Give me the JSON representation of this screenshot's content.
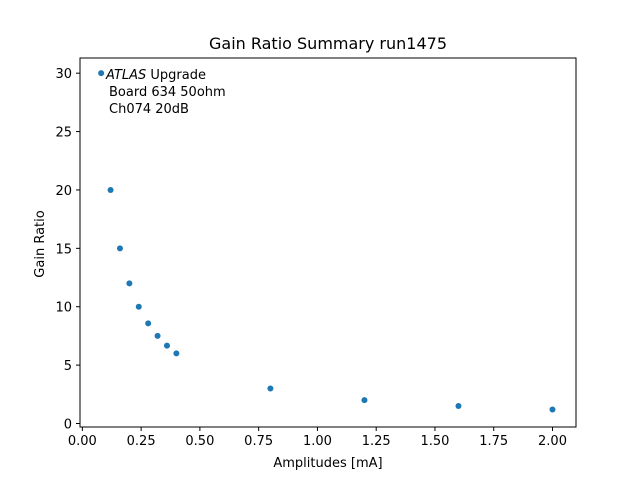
{
  "chart_data": {
    "type": "scatter",
    "title": "Gain Ratio Summary run1475",
    "xlabel": "Amplitudes [mA]",
    "ylabel": "Gain Ratio",
    "xlim": [
      -0.01,
      2.1
    ],
    "ylim": [
      -0.3,
      31.3
    ],
    "xticks": [
      0.0,
      0.25,
      0.5,
      0.75,
      1.0,
      1.25,
      1.5,
      1.75,
      2.0
    ],
    "xtick_labels": [
      "0.00",
      "0.25",
      "0.50",
      "0.75",
      "1.00",
      "1.25",
      "1.50",
      "1.75",
      "2.00"
    ],
    "yticks": [
      0,
      5,
      10,
      15,
      20,
      25,
      30
    ],
    "ytick_labels": [
      "0",
      "5",
      "10",
      "15",
      "20",
      "25",
      "30"
    ],
    "grid": false,
    "marker_color": "#1f77b4",
    "series": [
      {
        "x": [
          0.08,
          0.12,
          0.16,
          0.2,
          0.24,
          0.28,
          0.32,
          0.36,
          0.4,
          0.8,
          1.2,
          1.6,
          2.0
        ],
        "y": [
          30.0,
          20.0,
          15.0,
          12.0,
          10.0,
          8.57,
          7.5,
          6.67,
          6.0,
          3.0,
          2.0,
          1.5,
          1.2
        ]
      }
    ],
    "annotation": {
      "experiment": "ATLAS",
      "suffix": " Upgrade",
      "lines": [
        "Board 634 50ohm",
        "Ch074 20dB"
      ]
    }
  }
}
